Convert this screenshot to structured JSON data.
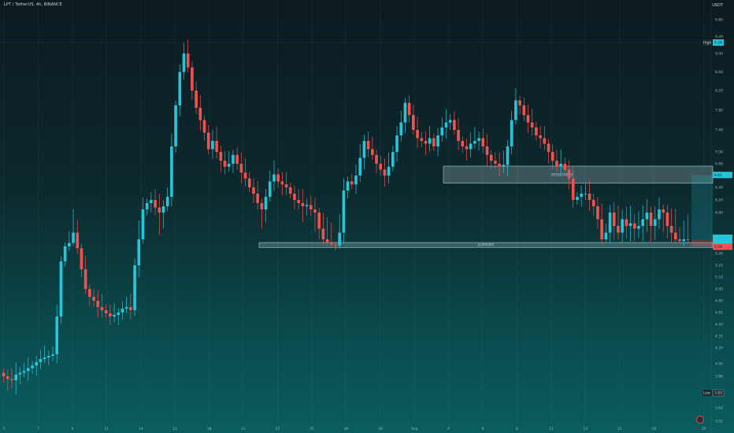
{
  "header": {
    "symbol_title": "LPT / TetherUS, 4h, BINANCE",
    "currency": "USDT"
  },
  "colors": {
    "up": "#26c6da",
    "down": "#ef5350",
    "zone_fill": "rgba(200,225,230,0.25)",
    "zone_stroke": "#9ccfd6"
  },
  "chart_data": {
    "type": "candlestick",
    "title": "LPT / TetherUS, 4h, BINANCE",
    "y_unit": "USDT",
    "y_scale": "log",
    "y_ticks": [
      "9.80",
      "9.40",
      "9.00",
      "8.60",
      "8.20",
      "7.80",
      "7.40",
      "7.00",
      "6.80",
      "6.40",
      "6.20",
      "6.00",
      "5.80",
      "5.40",
      "5.25",
      "5.10",
      "4.95",
      "4.80",
      "4.65",
      "4.50",
      "4.35",
      "4.20",
      "4.00",
      "3.86",
      "3.73",
      "3.62",
      "3.52"
    ],
    "x_ticks": [
      "5",
      "7",
      "9",
      "11",
      "14",
      "15",
      "18",
      "21",
      "23",
      "25",
      "28",
      "30",
      "Sep",
      "4",
      "6",
      "8",
      "11",
      "13",
      "15",
      "18",
      "20"
    ],
    "high": {
      "label": "High",
      "value": "9.26"
    },
    "low": {
      "label": "Low",
      "value": "3.83"
    },
    "zones": [
      {
        "label": "RESISTANCE",
        "top": 6.76,
        "bottom": 6.47
      },
      {
        "label": "SUPPORT",
        "top": 5.71,
        "bottom": 5.57
      }
    ],
    "price_tags": [
      {
        "value": "6.61",
        "color": "#26c6da"
      },
      {
        "value": "5.80",
        "color": "#26c6da"
      },
      {
        "value": "5.59",
        "color": "#ef5350"
      }
    ],
    "closes": [
      3.86,
      3.84,
      3.83,
      3.88,
      3.9,
      3.92,
      3.95,
      3.98,
      4.02,
      4.06,
      4.08,
      4.1,
      4.12,
      4.6,
      5.3,
      5.6,
      5.7,
      5.85,
      5.55,
      5.2,
      4.95,
      4.85,
      4.8,
      4.72,
      4.68,
      4.64,
      4.6,
      4.62,
      4.65,
      4.7,
      4.72,
      4.68,
      5.25,
      5.8,
      6.05,
      6.15,
      6.2,
      6.08,
      6.0,
      6.1,
      6.25,
      7.1,
      7.9,
      8.6,
      9.0,
      8.7,
      8.2,
      7.85,
      7.6,
      7.35,
      7.05,
      7.2,
      7.0,
      6.85,
      6.75,
      6.8,
      6.95,
      6.8,
      6.65,
      6.55,
      6.4,
      6.3,
      6.15,
      6.05,
      6.25,
      6.5,
      6.62,
      6.5,
      6.45,
      6.4,
      6.3,
      6.2,
      6.15,
      6.1,
      6.12,
      6.05,
      6.0,
      5.88,
      5.8,
      5.72,
      5.65,
      5.62,
      5.85,
      6.35,
      6.5,
      6.45,
      6.6,
      6.9,
      7.2,
      7.05,
      6.95,
      6.8,
      6.7,
      6.6,
      6.75,
      7.0,
      7.3,
      7.55,
      7.95,
      7.7,
      7.4,
      7.25,
      7.2,
      7.15,
      7.25,
      7.1,
      7.3,
      7.45,
      7.55,
      7.6,
      7.4,
      7.2,
      7.1,
      7.05,
      7.15,
      7.2,
      7.25,
      7.1,
      6.95,
      6.85,
      6.8,
      6.75,
      6.78,
      7.1,
      7.6,
      8.0,
      7.9,
      7.7,
      7.55,
      7.45,
      7.3,
      7.25,
      7.15,
      7.0,
      6.85,
      6.75,
      6.8,
      6.7,
      6.55,
      6.2,
      6.25,
      6.3,
      6.3,
      6.2,
      6.1,
      5.95,
      5.8,
      5.85,
      6.0,
      5.9,
      5.85,
      5.95,
      5.9,
      5.92,
      5.88,
      5.9,
      5.95,
      6.0,
      5.9,
      5.95,
      6.05,
      6.0,
      5.9,
      5.85,
      5.8,
      5.75,
      5.8,
      5.78
    ]
  }
}
